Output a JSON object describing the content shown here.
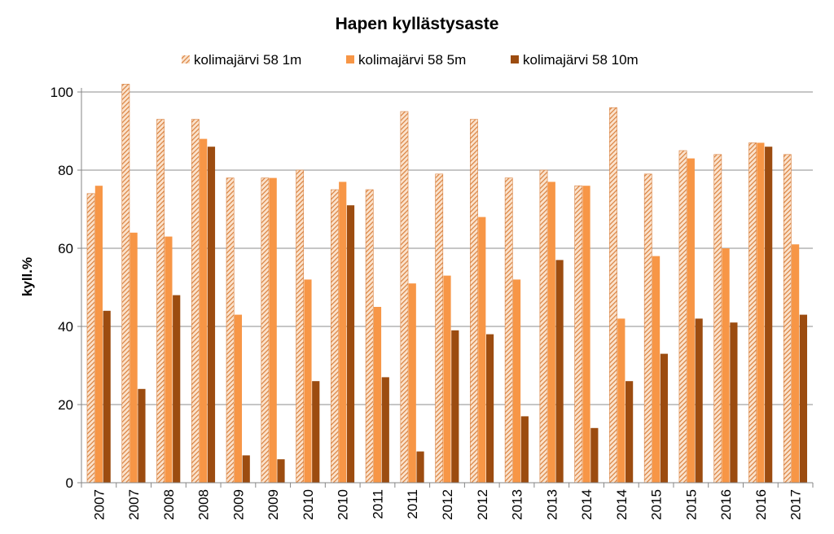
{
  "chart_data": {
    "type": "bar",
    "title": "Hapen kyllästysaste",
    "ylabel": "kyll.%",
    "xlabel": "",
    "ylim": [
      0,
      100
    ],
    "yticks": [
      0,
      20,
      40,
      60,
      80,
      100
    ],
    "grid": true,
    "legend_position": "top",
    "categories": [
      "2007",
      "2007",
      "2008",
      "2008",
      "2009",
      "2009",
      "2010",
      "2010",
      "2011",
      "2011",
      "2012",
      "2012",
      "2013",
      "2013",
      "2014",
      "2014",
      "2015",
      "2015",
      "2016",
      "2016",
      "2017"
    ],
    "series": [
      {
        "name": "kolimajärvi 58 1m",
        "color": "#D9813F",
        "pattern": "hatched",
        "values": [
          74,
          102,
          93,
          93,
          78,
          78,
          80,
          75,
          75,
          95,
          79,
          93,
          78,
          80,
          76,
          96,
          79,
          85,
          84,
          87,
          84
        ]
      },
      {
        "name": "kolimajärvi 58 5m",
        "color": "#F79646",
        "pattern": "solid",
        "values": [
          76,
          64,
          63,
          88,
          43,
          78,
          52,
          77,
          45,
          51,
          53,
          68,
          52,
          77,
          76,
          42,
          58,
          83,
          60,
          87,
          61
        ]
      },
      {
        "name": "kolimajärvi 58 10m",
        "color": "#9C4C10",
        "pattern": "solid",
        "values": [
          44,
          24,
          48,
          86,
          7,
          6,
          26,
          71,
          27,
          8,
          39,
          38,
          17,
          57,
          14,
          26,
          33,
          42,
          41,
          86,
          43
        ]
      }
    ]
  }
}
